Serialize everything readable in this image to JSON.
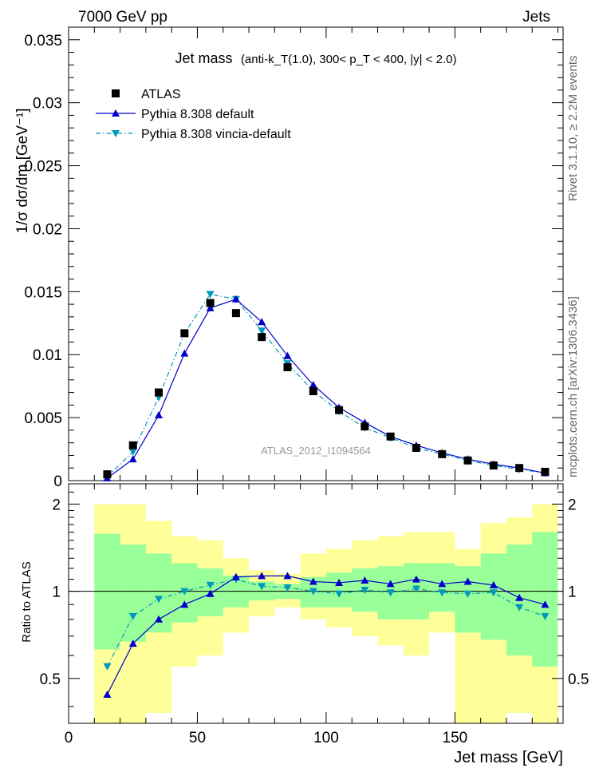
{
  "header": {
    "left": "7000 GeV pp",
    "right": "Jets"
  },
  "side_labels": {
    "rivet": "Rivet 3.1.10, ≥ 2.2M events",
    "mcplots": "mcplots.cern.ch [arXiv:1306.3436]"
  },
  "watermark": "ATLAS_2012_I1094564",
  "chart_data": [
    {
      "type": "scatter",
      "panel": "main",
      "title_main": "Jet mass",
      "title_detail": "(anti-k_T(1.0), 300< p_T < 400, |y| < 2.0)",
      "ylabel": "1/σ dσ/dm [GeV⁻¹]",
      "xlim": [
        0,
        192
      ],
      "ylim": [
        0,
        0.036
      ],
      "yticks": [
        0,
        0.005,
        0.01,
        0.015,
        0.02,
        0.025,
        0.03,
        0.035
      ],
      "ytick_labels": [
        "0",
        "0.005",
        "0.01",
        "0.015",
        "0.02",
        "0.025",
        "0.03",
        "0.035"
      ],
      "legend_position": "top-left",
      "x": [
        15,
        25,
        35,
        45,
        55,
        65,
        75,
        85,
        95,
        105,
        115,
        125,
        135,
        145,
        155,
        165,
        175,
        185
      ],
      "series": [
        {
          "name": "ATLAS",
          "style": "square",
          "color": "#000000",
          "values": [
            0.0005,
            0.0028,
            0.007,
            0.0117,
            0.0141,
            0.0133,
            0.0114,
            0.009,
            0.0071,
            0.0056,
            0.0043,
            0.0035,
            0.0026,
            0.0021,
            0.0016,
            0.0012,
            0.001,
            0.0007
          ]
        },
        {
          "name": "Pythia 8.308 default",
          "style": "solid-triangle-up",
          "color": "#0000cc",
          "values": [
            0.0002,
            0.0017,
            0.0052,
            0.0101,
            0.0137,
            0.0144,
            0.0126,
            0.0099,
            0.0076,
            0.0058,
            0.0046,
            0.0035,
            0.0028,
            0.0022,
            0.0017,
            0.0013,
            0.001,
            0.0006
          ]
        },
        {
          "name": "Pythia 8.308 vincia-default",
          "style": "dashdot-triangle-down",
          "color": "#0099bb",
          "values": [
            0.0003,
            0.0023,
            0.0066,
            0.0117,
            0.0148,
            0.0144,
            0.0119,
            0.0093,
            0.0071,
            0.0055,
            0.0042,
            0.0034,
            0.0026,
            0.0021,
            0.0016,
            0.0012,
            0.0009,
            0.0006
          ]
        }
      ]
    },
    {
      "type": "scatter",
      "panel": "ratio",
      "ylabel": "Ratio to ATLAS",
      "xlabel": "Jet mass [GeV]",
      "xlim": [
        0,
        192
      ],
      "xticks": [
        0,
        50,
        100,
        150
      ],
      "xtick_labels": [
        "0",
        "50",
        "100",
        "150"
      ],
      "ylim": [
        0.35,
        2.35
      ],
      "yticks": [
        0.5,
        1,
        2
      ],
      "ytick_labels": [
        "0.5",
        "1",
        "2"
      ],
      "bin_edges": [
        10,
        20,
        30,
        40,
        50,
        60,
        70,
        80,
        90,
        100,
        110,
        120,
        130,
        140,
        150,
        160,
        170,
        180,
        190
      ],
      "band_yellow": {
        "lo": [
          0.35,
          0.35,
          0.38,
          0.55,
          0.6,
          0.72,
          0.82,
          0.88,
          0.8,
          0.75,
          0.7,
          0.65,
          0.6,
          0.72,
          0.35,
          0.35,
          0.38,
          0.35
        ],
        "hi": [
          2.0,
          2.0,
          1.75,
          1.55,
          1.5,
          1.3,
          1.18,
          1.15,
          1.35,
          1.4,
          1.5,
          1.55,
          1.6,
          1.6,
          1.4,
          1.72,
          1.8,
          2.0
        ]
      },
      "band_green": {
        "lo": [
          0.63,
          0.67,
          0.72,
          0.78,
          0.82,
          0.88,
          0.93,
          0.94,
          0.88,
          0.88,
          0.85,
          0.8,
          0.8,
          0.85,
          0.72,
          0.68,
          0.6,
          0.55
        ],
        "hi": [
          1.58,
          1.45,
          1.35,
          1.25,
          1.2,
          1.13,
          1.08,
          1.06,
          1.12,
          1.16,
          1.2,
          1.22,
          1.25,
          1.25,
          1.22,
          1.35,
          1.45,
          1.6
        ]
      },
      "x": [
        15,
        25,
        35,
        45,
        55,
        65,
        75,
        85,
        95,
        105,
        115,
        125,
        135,
        145,
        155,
        165,
        175,
        185
      ],
      "series": [
        {
          "name": "Pythia 8.308 default",
          "style": "solid-triangle-up",
          "color": "#0000cc",
          "values": [
            0.44,
            0.66,
            0.8,
            0.9,
            0.98,
            1.12,
            1.13,
            1.13,
            1.08,
            1.07,
            1.09,
            1.06,
            1.1,
            1.06,
            1.08,
            1.05,
            0.95,
            0.9
          ]
        },
        {
          "name": "Pythia 8.308 vincia-default",
          "style": "dashdot-triangle-down",
          "color": "#0099bb",
          "values": [
            0.55,
            0.82,
            0.94,
            1.0,
            1.05,
            1.1,
            1.04,
            1.03,
            1.0,
            0.98,
            1.01,
            0.99,
            1.02,
            0.99,
            0.98,
            0.99,
            0.88,
            0.82
          ]
        }
      ]
    }
  ]
}
